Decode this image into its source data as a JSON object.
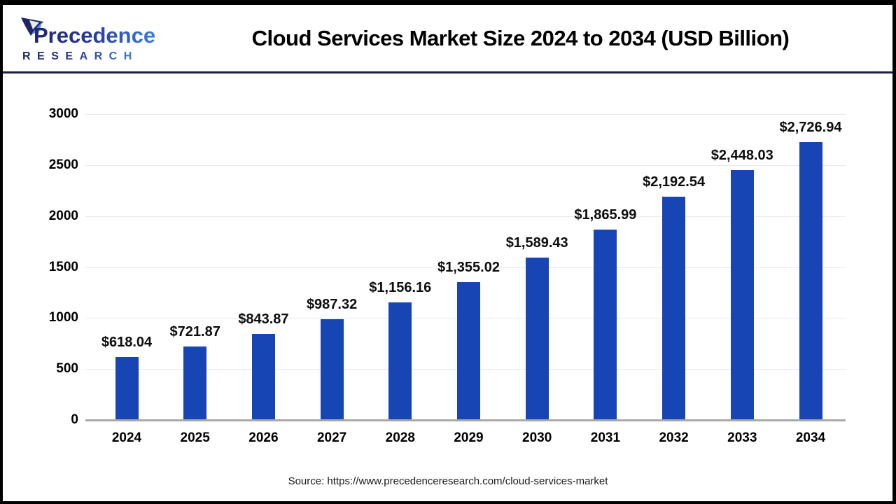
{
  "header": {
    "title": "Cloud Services Market Size 2024 to 2034 (USD Billion)",
    "logo": {
      "brand": "Precedence",
      "sub_brand": "RESEARCH",
      "navy": "#1f2566",
      "blue": "#3a7de0"
    }
  },
  "chart_data": {
    "type": "bar",
    "title": "Cloud Services Market Size 2024 to 2034 (USD Billion)",
    "unit": "USD Billion",
    "categories": [
      "2024",
      "2025",
      "2026",
      "2027",
      "2028",
      "2029",
      "2030",
      "2031",
      "2032",
      "2033",
      "2034"
    ],
    "values": [
      618.04,
      721.87,
      843.87,
      987.32,
      1156.16,
      1355.02,
      1589.43,
      1865.99,
      2192.54,
      2448.03,
      2726.94
    ],
    "value_labels": [
      "$618.04",
      "$721.87",
      "$843.87",
      "$987.32",
      "$1,156.16",
      "$1,355.02",
      "$1,589.43",
      "$1,865.99",
      "$2,192.54",
      "$2,448.03",
      "$2,726.94"
    ],
    "y_ticks": [
      0,
      500,
      1000,
      1500,
      2000,
      2500,
      3000
    ],
    "ylim": [
      0,
      3000
    ],
    "grid": "horizontal",
    "legend_position": "none",
    "bar_color": "#1746B4",
    "gridline_color": "#e9e9e9",
    "baseline_color": "#a9a9a9"
  },
  "footer": {
    "source": "Source: https://www.precedenceresearch.com/cloud-services-market"
  }
}
